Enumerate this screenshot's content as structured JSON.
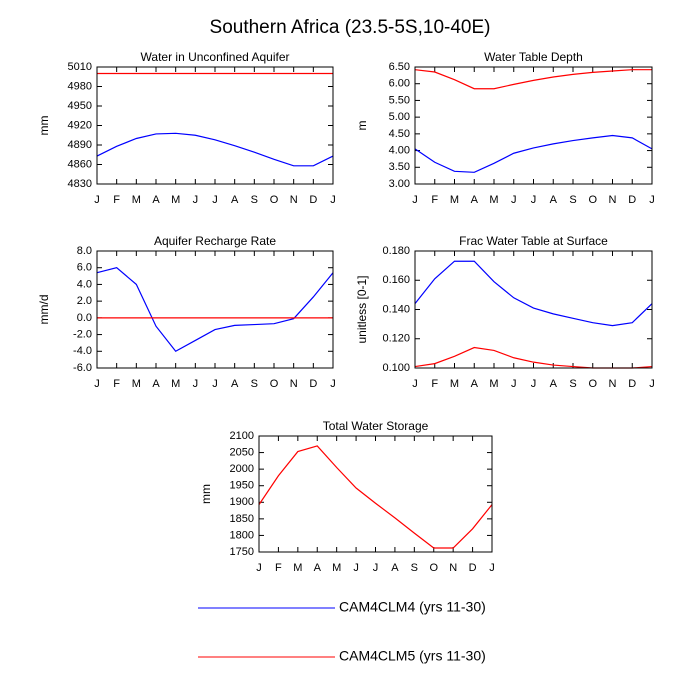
{
  "title": "Southern Africa (23.5-5S,10-40E)",
  "chart_data": [
    {
      "type": "line",
      "title": "Water in Unconfined Aquifer",
      "ylabel": "mm",
      "categories": [
        "J",
        "F",
        "M",
        "A",
        "M",
        "J",
        "J",
        "A",
        "S",
        "O",
        "N",
        "D",
        "J"
      ],
      "ylim": [
        4830,
        5010
      ],
      "yticks": [
        4830,
        4860,
        4890,
        4920,
        4950,
        4980,
        5010
      ],
      "series": [
        {
          "name": "CAM4CLM4 (yrs 11-30)",
          "color": "#0000ff",
          "values": [
            4873,
            4888,
            4900,
            4907,
            4908,
            4905,
            4898,
            4889,
            4879,
            4868,
            4858,
            4858,
            4873
          ]
        },
        {
          "name": "CAM4CLM5 (yrs 11-30)",
          "color": "#ff0000",
          "values": [
            5000,
            5000,
            5000,
            5000,
            5000,
            5000,
            5000,
            5000,
            5000,
            5000,
            5000,
            5000,
            5000
          ]
        }
      ]
    },
    {
      "type": "line",
      "title": "Water Table Depth",
      "ylabel": "m",
      "categories": [
        "J",
        "F",
        "M",
        "A",
        "M",
        "J",
        "J",
        "A",
        "S",
        "O",
        "N",
        "D",
        "J"
      ],
      "ylim": [
        3.0,
        6.5
      ],
      "yticks": [
        {
          "value": 3.0,
          "label": "3.00"
        },
        {
          "value": 3.5,
          "label": "3.50"
        },
        {
          "value": 4.0,
          "label": "4.00"
        },
        {
          "value": 4.5,
          "label": "4.50"
        },
        {
          "value": 5.0,
          "label": "5.00"
        },
        {
          "value": 5.5,
          "label": "5.50"
        },
        {
          "value": 6.0,
          "label": "6.00"
        },
        {
          "value": 6.5,
          "label": "6.50"
        }
      ],
      "series": [
        {
          "name": "CAM4CLM4 (yrs 11-30)",
          "color": "#0000ff",
          "values": [
            4.05,
            3.65,
            3.38,
            3.35,
            3.62,
            3.92,
            4.08,
            4.2,
            4.3,
            4.38,
            4.45,
            4.38,
            4.05
          ]
        },
        {
          "name": "CAM4CLM5 (yrs 11-30)",
          "color": "#ff0000",
          "values": [
            6.42,
            6.35,
            6.12,
            5.85,
            5.85,
            5.98,
            6.1,
            6.2,
            6.28,
            6.34,
            6.38,
            6.42,
            6.42
          ]
        }
      ]
    },
    {
      "type": "line",
      "title": "Aquifer Recharge Rate",
      "ylabel": "mm/d",
      "categories": [
        "J",
        "F",
        "M",
        "A",
        "M",
        "J",
        "J",
        "A",
        "S",
        "O",
        "N",
        "D",
        "J"
      ],
      "ylim": [
        -6,
        8
      ],
      "yticks": [
        {
          "value": -6,
          "label": "-6.0"
        },
        {
          "value": -4,
          "label": "-4.0"
        },
        {
          "value": -2,
          "label": "-2.0"
        },
        {
          "value": 0,
          "label": "0.0"
        },
        {
          "value": 2,
          "label": "2.0"
        },
        {
          "value": 4,
          "label": "4.0"
        },
        {
          "value": 6,
          "label": "6.0"
        },
        {
          "value": 8,
          "label": "8.0"
        }
      ],
      "series": [
        {
          "name": "CAM4CLM4 (yrs 11-30)",
          "color": "#0000ff",
          "values": [
            5.4,
            6.0,
            4.0,
            -1.0,
            -4.0,
            -2.7,
            -1.4,
            -0.9,
            -0.8,
            -0.7,
            -0.1,
            2.5,
            5.4
          ]
        },
        {
          "name": "CAM4CLM5 (yrs 11-30)",
          "color": "#ff0000",
          "values": [
            0,
            0,
            0,
            0,
            0,
            0,
            0,
            0,
            0,
            0,
            0,
            0,
            0
          ]
        }
      ]
    },
    {
      "type": "line",
      "title": "Frac Water Table at Surface",
      "ylabel": "unitless [0-1]",
      "categories": [
        "J",
        "F",
        "M",
        "A",
        "M",
        "J",
        "J",
        "A",
        "S",
        "O",
        "N",
        "D",
        "J"
      ],
      "ylim": [
        0.1,
        0.18
      ],
      "yticks": [
        {
          "value": 0.1,
          "label": "0.100"
        },
        {
          "value": 0.12,
          "label": "0.120"
        },
        {
          "value": 0.14,
          "label": "0.140"
        },
        {
          "value": 0.16,
          "label": "0.160"
        },
        {
          "value": 0.18,
          "label": "0.180"
        }
      ],
      "series": [
        {
          "name": "CAM4CLM4 (yrs 11-30)",
          "color": "#0000ff",
          "values": [
            0.144,
            0.161,
            0.173,
            0.173,
            0.159,
            0.148,
            0.141,
            0.137,
            0.134,
            0.131,
            0.129,
            0.131,
            0.144
          ]
        },
        {
          "name": "CAM4CLM5 (yrs 11-30)",
          "color": "#ff0000",
          "values": [
            0.101,
            0.103,
            0.108,
            0.114,
            0.112,
            0.107,
            0.104,
            0.102,
            0.101,
            0.1,
            0.1,
            0.1,
            0.101
          ]
        }
      ]
    },
    {
      "type": "line",
      "title": "Total Water Storage",
      "ylabel": "mm",
      "categories": [
        "J",
        "F",
        "M",
        "A",
        "M",
        "J",
        "J",
        "A",
        "S",
        "O",
        "N",
        "D",
        "J"
      ],
      "ylim": [
        1750,
        2100
      ],
      "yticks": [
        1750,
        1800,
        1850,
        1900,
        1950,
        2000,
        2050,
        2100
      ],
      "series": [
        {
          "name": "CAM4CLM5 (yrs 11-30)",
          "color": "#ff0000",
          "values": [
            1893,
            1980,
            2053,
            2070,
            2005,
            1943,
            1897,
            1853,
            1807,
            1762,
            1762,
            1820,
            1893
          ]
        }
      ]
    }
  ]
}
